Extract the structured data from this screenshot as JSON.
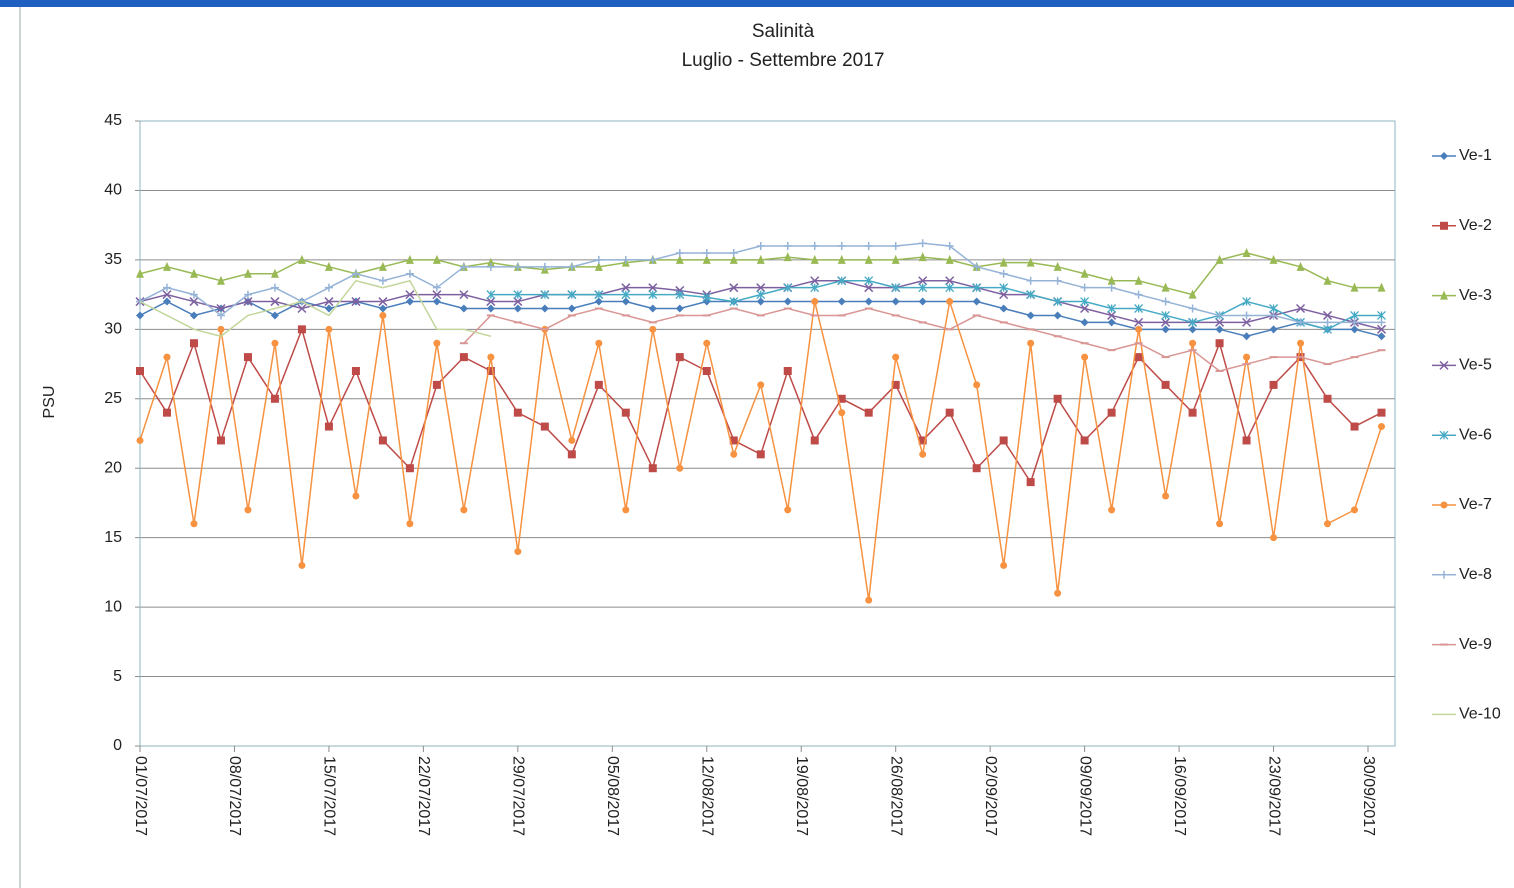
{
  "chart_data": {
    "type": "line",
    "title": "Salinità",
    "subtitle": "Luglio - Settembre 2017",
    "y_label": "PSU",
    "xlim": [
      "01/07/2017",
      "02/10/2017"
    ],
    "xticks": [
      "01/07/2017",
      "08/07/2017",
      "15/07/2017",
      "22/07/2017",
      "29/07/2017",
      "05/08/2017",
      "12/08/2017",
      "19/08/2017",
      "26/08/2017",
      "02/09/2017",
      "09/09/2017",
      "16/09/2017",
      "23/09/2017",
      "30/09/2017"
    ],
    "ylim": [
      0,
      45
    ],
    "yticks": [
      0,
      5,
      10,
      15,
      20,
      25,
      30,
      35,
      40,
      45
    ],
    "grid": true,
    "legend": "right",
    "x": [
      "01/07/2017",
      "03/07/2017",
      "05/07/2017",
      "07/07/2017",
      "09/07/2017",
      "11/07/2017",
      "13/07/2017",
      "15/07/2017",
      "17/07/2017",
      "19/07/2017",
      "21/07/2017",
      "23/07/2017",
      "25/07/2017",
      "27/07/2017",
      "29/07/2017",
      "31/07/2017",
      "02/08/2017",
      "04/08/2017",
      "06/08/2017",
      "08/08/2017",
      "10/08/2017",
      "12/08/2017",
      "14/08/2017",
      "16/08/2017",
      "18/08/2017",
      "20/08/2017",
      "22/08/2017",
      "24/08/2017",
      "26/08/2017",
      "28/08/2017",
      "30/08/2017",
      "01/09/2017",
      "03/09/2017",
      "05/09/2017",
      "07/09/2017",
      "09/09/2017",
      "11/09/2017",
      "13/09/2017",
      "15/09/2017",
      "17/09/2017",
      "19/09/2017",
      "21/09/2017",
      "23/09/2017",
      "25/09/2017",
      "27/09/2017",
      "29/09/2017",
      "01/10/2017"
    ],
    "series": [
      {
        "name": "Ve-1",
        "color": "#4a7ebb",
        "marker": "diamond",
        "values": [
          31,
          32,
          31,
          31.5,
          32,
          31,
          32,
          31.5,
          32,
          31.5,
          32,
          32,
          31.5,
          31.5,
          31.5,
          31.5,
          31.5,
          32,
          32,
          31.5,
          31.5,
          32,
          32,
          32,
          32,
          32,
          32,
          32,
          32,
          32,
          32,
          32,
          31.5,
          31,
          31,
          30.5,
          30.5,
          30,
          30,
          30,
          30,
          29.5,
          30,
          30.5,
          30,
          30,
          29.5
        ]
      },
      {
        "name": "Ve-2",
        "color": "#be4b48",
        "marker": "square",
        "values": [
          27,
          24,
          29,
          22,
          28,
          25,
          30,
          23,
          27,
          22,
          20,
          26,
          28,
          27,
          24,
          23,
          21,
          26,
          24,
          20,
          28,
          27,
          22,
          21,
          27,
          22,
          25,
          24,
          26,
          22,
          24,
          20,
          22,
          19,
          25,
          22,
          24,
          28,
          26,
          24,
          29,
          22,
          26,
          28,
          25,
          23,
          24
        ]
      },
      {
        "name": "Ve-3",
        "color": "#98b954",
        "marker": "triangle",
        "values": [
          34,
          34.5,
          34,
          33.5,
          34,
          34,
          35,
          34.5,
          34,
          34.5,
          35,
          35,
          34.5,
          34.8,
          34.5,
          34.3,
          34.5,
          34.5,
          34.8,
          35,
          35,
          35,
          35,
          35,
          35.2,
          35,
          35,
          35,
          35,
          35.2,
          35,
          34.5,
          34.8,
          34.8,
          34.5,
          34,
          33.5,
          33.5,
          33,
          32.5,
          35,
          35.5,
          35,
          34.5,
          33.5,
          33,
          33
        ]
      },
      {
        "name": "Ve-5",
        "color": "#7d60a0",
        "marker": "x",
        "values": [
          32,
          32.5,
          32,
          31.5,
          32,
          32,
          31.5,
          32,
          32,
          32,
          32.5,
          32.5,
          32.5,
          32,
          32,
          32.5,
          32.5,
          32.5,
          33,
          33,
          32.8,
          32.5,
          33,
          33,
          33,
          33.5,
          33.5,
          33,
          33,
          33.5,
          33.5,
          33,
          32.5,
          32.5,
          32,
          31.5,
          31,
          30.5,
          30.5,
          30.5,
          30.5,
          30.5,
          31,
          31.5,
          31,
          30.5,
          30
        ]
      },
      {
        "name": "Ve-6",
        "color": "#46aac5",
        "marker": "star",
        "values": [
          null,
          null,
          null,
          null,
          null,
          null,
          null,
          null,
          null,
          null,
          null,
          null,
          null,
          32.5,
          32.5,
          32.5,
          32.5,
          32.5,
          32.5,
          32.5,
          32.5,
          32.3,
          32,
          32.5,
          33,
          33,
          33.5,
          33.5,
          33,
          33,
          33,
          33,
          33,
          32.5,
          32,
          32,
          31.5,
          31.5,
          31,
          30.5,
          31,
          32,
          31.5,
          30.5,
          30,
          31,
          31
        ]
      },
      {
        "name": "Ve-7",
        "color": "#f69240",
        "marker": "circle",
        "values": [
          22,
          28,
          16,
          30,
          17,
          29,
          13,
          30,
          18,
          31,
          16,
          29,
          17,
          28,
          14,
          30,
          22,
          29,
          17,
          30,
          20,
          29,
          21,
          26,
          17,
          32,
          24,
          10.5,
          28,
          21,
          32,
          26,
          13,
          29,
          11,
          28,
          17,
          30,
          18,
          29,
          16,
          28,
          15,
          29,
          16,
          17,
          23
        ]
      },
      {
        "name": "Ve-8",
        "color": "#95b3d7",
        "marker": "plus",
        "values": [
          32,
          33,
          32.5,
          31,
          32.5,
          33,
          32,
          33,
          34,
          33.5,
          34,
          33,
          34.5,
          34.5,
          34.5,
          34.5,
          34.5,
          35,
          35,
          35,
          35.5,
          35.5,
          35.5,
          36,
          36,
          36,
          36,
          36,
          36,
          36.2,
          36,
          34.5,
          34,
          33.5,
          33.5,
          33,
          33,
          32.5,
          32,
          31.5,
          31,
          31,
          31,
          30.5,
          30.5,
          30.5,
          30.5
        ]
      },
      {
        "name": "Ve-9",
        "color": "#d99694",
        "marker": "dash",
        "values": [
          null,
          null,
          null,
          null,
          null,
          null,
          null,
          null,
          null,
          null,
          null,
          null,
          29,
          31,
          30.5,
          30,
          31,
          31.5,
          31,
          30.5,
          31,
          31,
          31.5,
          31,
          31.5,
          31,
          31,
          31.5,
          31,
          30.5,
          30,
          31,
          30.5,
          30,
          29.5,
          29,
          28.5,
          29,
          28,
          28.5,
          27,
          27.5,
          28,
          28,
          27.5,
          28,
          28.5
        ]
      },
      {
        "name": "Ve-10",
        "color": "#c3d69b",
        "marker": "none",
        "values": [
          32,
          31,
          30,
          29.5,
          31,
          31.5,
          32,
          31,
          33.5,
          33,
          33.5,
          30,
          30,
          29.5,
          null,
          null,
          null,
          null,
          null,
          null,
          null,
          null,
          null,
          null,
          null,
          null,
          null,
          null,
          null,
          null,
          null,
          null,
          null,
          null,
          null,
          null,
          null,
          null,
          null,
          null,
          null,
          null,
          null,
          null,
          null,
          null,
          null
        ]
      }
    ]
  }
}
